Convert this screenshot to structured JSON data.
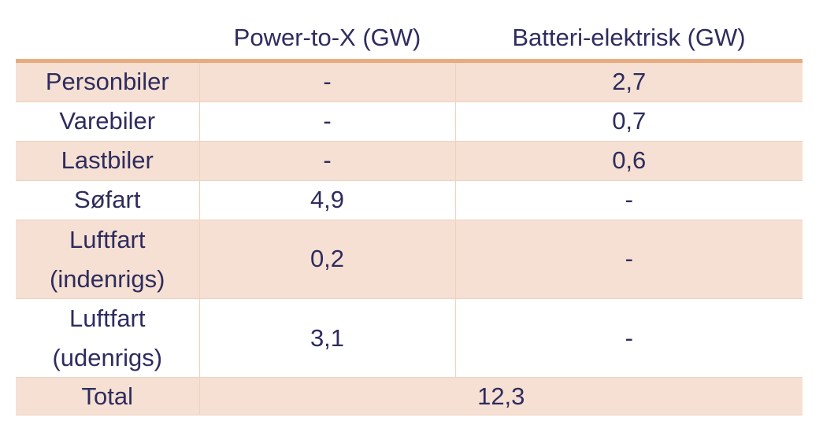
{
  "table": {
    "headers": [
      "",
      "Power-to-X (GW)",
      "Batteri-elektrisk (GW)"
    ],
    "rows": [
      {
        "label": "Personbiler",
        "ptx": "-",
        "battery": "2,7"
      },
      {
        "label": "Varebiler",
        "ptx": "-",
        "battery": "0,7"
      },
      {
        "label": "Lastbiler",
        "ptx": "-",
        "battery": "0,6"
      },
      {
        "label": "Søfart",
        "ptx": "4,9",
        "battery": "-"
      },
      {
        "label_line1": "Luftfart",
        "label_line2": "(indenrigs)",
        "ptx": "0,2",
        "battery": "-"
      },
      {
        "label_line1": "Luftfart",
        "label_line2": "(udenrigs)",
        "ptx": "3,1",
        "battery": "-"
      }
    ],
    "total": {
      "label": "Total",
      "value": "12,3"
    }
  },
  "colors": {
    "text": "#2e2c5e",
    "row_shade": "#f5e0d3",
    "header_rule": "#e8ab80",
    "grid": "#f0d2be"
  }
}
